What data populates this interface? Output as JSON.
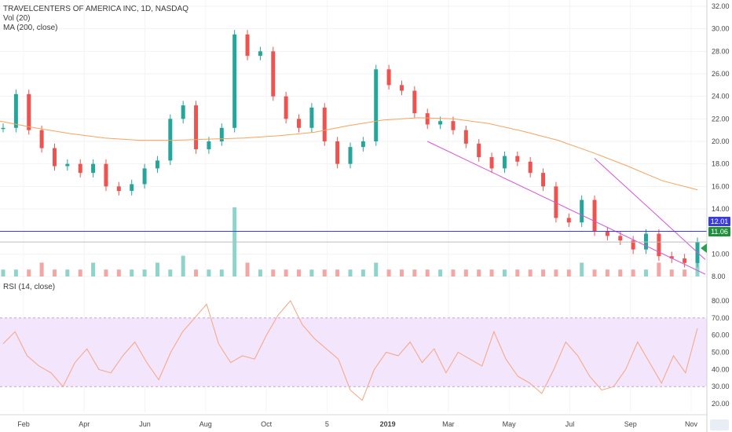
{
  "header": {
    "symbol_line": "TRAVELCENTERS OF AMERICA INC, 1D, NASDAQ",
    "volume_label": "Vol (20)",
    "ma_label": "MA (200, close)",
    "rsi_label": "RSI (14, close)"
  },
  "price_tags": {
    "resistance": "12.01",
    "last": "11.06"
  },
  "colors": {
    "up": "#26a69a",
    "down": "#ef5350",
    "ma": "#f7a35c",
    "rsi": "#f4a582",
    "rsi_band": "#f3e5fb",
    "resistance": "#3c3cd8",
    "channel": "#d654d6"
  },
  "icons": {
    "arrow": "left-triangle-icon",
    "logo": "tradingview-logo-icon"
  },
  "chart_data": [
    {
      "type": "candlestick",
      "x_ticks": [
        "Feb",
        "Apr",
        "Jun",
        "Aug",
        "Oct",
        "5",
        "2019",
        "Mar",
        "May",
        "Jul",
        "Sep",
        "Nov"
      ],
      "y_ticks": [
        "32.00",
        "30.00",
        "28.00",
        "26.00",
        "24.00",
        "22.00",
        "20.00",
        "18.00",
        "16.00",
        "14.00",
        "10.00",
        "8.00"
      ],
      "ylim": [
        8,
        32
      ],
      "series": [
        {
          "name": "price",
          "values": [
            21.2,
            24.2,
            21.0,
            19.4,
            17.8,
            18.0,
            17.2,
            18.0,
            16.0,
            15.6,
            16.2,
            17.6,
            18.3,
            22.0,
            23.2,
            19.3,
            20.0,
            21.2,
            29.5,
            27.6,
            28.0,
            24.0,
            22.0,
            21.2,
            23.0,
            20.0,
            18.0,
            19.5,
            20.0,
            26.4,
            25.0,
            24.5,
            22.5,
            21.5,
            21.8,
            21.0,
            19.8,
            18.6,
            17.6,
            18.7,
            18.2,
            17.2,
            16.0,
            13.2,
            12.8,
            14.8,
            12.0,
            11.6,
            11.2,
            10.4,
            11.8,
            9.8,
            9.6,
            9.2,
            11.06
          ]
        },
        {
          "name": "MA (200, close)",
          "values": [
            21.8,
            21.2,
            20.7,
            20.3,
            20.1,
            20.1,
            20.2,
            20.3,
            20.5,
            20.8,
            21.4,
            21.9,
            22.1,
            22.0,
            21.6,
            20.9,
            20.1,
            19.0,
            17.8,
            16.5,
            15.7
          ]
        },
        {
          "name": "resistance",
          "values": [
            12.01
          ]
        }
      ]
    },
    {
      "type": "bar",
      "title": "Vol (20)",
      "values": [
        1,
        1,
        1,
        2,
        1,
        1,
        1,
        2,
        1,
        1,
        1,
        1,
        2,
        1,
        3,
        1,
        1,
        1,
        10,
        2,
        1,
        1,
        1,
        1,
        1,
        1,
        1,
        1,
        1,
        2,
        1,
        1,
        1,
        1,
        1,
        1,
        1,
        1,
        1,
        1,
        1,
        1,
        1,
        1,
        1,
        2,
        1,
        1,
        1,
        1,
        1,
        2,
        1,
        1,
        3
      ]
    },
    {
      "type": "line",
      "title": "RSI (14, close)",
      "y_ticks": [
        "80.00",
        "70.00",
        "60.00",
        "50.00",
        "40.00",
        "30.00",
        "20.00"
      ],
      "ylim": [
        15,
        85
      ],
      "band": [
        30,
        70
      ],
      "values": [
        55,
        62,
        48,
        42,
        38,
        30,
        44,
        52,
        40,
        38,
        48,
        56,
        44,
        34,
        50,
        62,
        70,
        78,
        55,
        44,
        48,
        46,
        60,
        72,
        80,
        66,
        58,
        52,
        46,
        28,
        22,
        40,
        50,
        48,
        56,
        44,
        52,
        38,
        50,
        46,
        42,
        62,
        46,
        36,
        32,
        26,
        40,
        56,
        48,
        36,
        28,
        30,
        40,
        56,
        44,
        32,
        48,
        38,
        64
      ]
    }
  ]
}
